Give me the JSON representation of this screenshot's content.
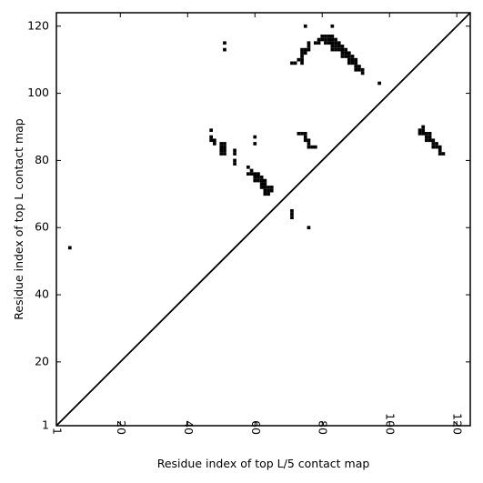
{
  "chart_data": {
    "type": "heatmap",
    "title": "",
    "xlabel": "Residue index of top L/5 contact map",
    "ylabel": "Residue index of top L contact map",
    "xlim": [
      1,
      124
    ],
    "ylim": [
      1,
      124
    ],
    "x_ticks": [
      1,
      20,
      40,
      60,
      80,
      100,
      120
    ],
    "y_ticks": [
      1,
      20,
      40,
      60,
      80,
      100,
      120
    ],
    "x_tick_rotation": -90,
    "diagonal_line": true,
    "cell_color": "#000000",
    "background_color": "#ffffff",
    "contacts": [
      [
        5,
        54
      ],
      [
        51,
        113
      ],
      [
        51,
        115
      ],
      [
        47,
        86
      ],
      [
        47,
        87
      ],
      [
        47,
        89
      ],
      [
        48,
        85
      ],
      [
        48,
        86
      ],
      [
        50,
        82
      ],
      [
        50,
        83
      ],
      [
        50,
        84
      ],
      [
        50,
        85
      ],
      [
        51,
        82
      ],
      [
        51,
        83
      ],
      [
        51,
        84
      ],
      [
        51,
        85
      ],
      [
        54,
        79
      ],
      [
        54,
        80
      ],
      [
        54,
        82
      ],
      [
        54,
        83
      ],
      [
        58,
        76
      ],
      [
        58,
        78
      ],
      [
        59,
        76
      ],
      [
        59,
        77
      ],
      [
        60,
        74
      ],
      [
        60,
        75
      ],
      [
        60,
        76
      ],
      [
        60,
        85
      ],
      [
        60,
        87
      ],
      [
        61,
        74
      ],
      [
        61,
        75
      ],
      [
        61,
        76
      ],
      [
        62,
        72
      ],
      [
        62,
        73
      ],
      [
        62,
        74
      ],
      [
        62,
        75
      ],
      [
        63,
        70
      ],
      [
        63,
        71
      ],
      [
        63,
        72
      ],
      [
        63,
        73
      ],
      [
        63,
        74
      ],
      [
        64,
        70
      ],
      [
        64,
        71
      ],
      [
        64,
        72
      ],
      [
        65,
        71
      ],
      [
        65,
        72
      ],
      [
        71,
        63
      ],
      [
        71,
        64
      ],
      [
        71,
        65
      ],
      [
        71,
        109
      ],
      [
        72,
        109
      ],
      [
        73,
        110
      ],
      [
        74,
        109
      ],
      [
        74,
        110
      ],
      [
        74,
        111
      ],
      [
        74,
        112
      ],
      [
        74,
        113
      ],
      [
        75,
        112
      ],
      [
        75,
        113
      ],
      [
        75,
        120
      ],
      [
        76,
        113
      ],
      [
        76,
        114
      ],
      [
        76,
        115
      ],
      [
        76,
        60
      ],
      [
        73,
        88
      ],
      [
        74,
        88
      ],
      [
        75,
        86
      ],
      [
        75,
        87
      ],
      [
        75,
        88
      ],
      [
        76,
        84
      ],
      [
        76,
        85
      ],
      [
        76,
        86
      ],
      [
        77,
        84
      ],
      [
        78,
        84
      ],
      [
        78,
        115
      ],
      [
        79,
        115
      ],
      [
        79,
        116
      ],
      [
        80,
        116
      ],
      [
        80,
        117
      ],
      [
        81,
        115
      ],
      [
        81,
        116
      ],
      [
        81,
        117
      ],
      [
        82,
        115
      ],
      [
        82,
        116
      ],
      [
        82,
        117
      ],
      [
        83,
        113
      ],
      [
        83,
        114
      ],
      [
        83,
        115
      ],
      [
        83,
        116
      ],
      [
        83,
        117
      ],
      [
        83,
        120
      ],
      [
        84,
        113
      ],
      [
        84,
        114
      ],
      [
        84,
        115
      ],
      [
        84,
        116
      ],
      [
        85,
        113
      ],
      [
        85,
        114
      ],
      [
        85,
        115
      ],
      [
        86,
        111
      ],
      [
        86,
        112
      ],
      [
        86,
        113
      ],
      [
        86,
        114
      ],
      [
        87,
        111
      ],
      [
        87,
        112
      ],
      [
        87,
        113
      ],
      [
        88,
        109
      ],
      [
        88,
        110
      ],
      [
        88,
        111
      ],
      [
        88,
        112
      ],
      [
        89,
        109
      ],
      [
        89,
        110
      ],
      [
        89,
        111
      ],
      [
        90,
        107
      ],
      [
        90,
        108
      ],
      [
        90,
        109
      ],
      [
        90,
        110
      ],
      [
        91,
        107
      ],
      [
        91,
        108
      ],
      [
        92,
        106
      ],
      [
        92,
        107
      ],
      [
        97,
        103
      ],
      [
        109,
        88
      ],
      [
        109,
        89
      ],
      [
        110,
        88
      ],
      [
        110,
        89
      ],
      [
        110,
        90
      ],
      [
        111,
        86
      ],
      [
        111,
        87
      ],
      [
        111,
        88
      ],
      [
        112,
        86
      ],
      [
        112,
        87
      ],
      [
        112,
        88
      ],
      [
        113,
        84
      ],
      [
        113,
        85
      ],
      [
        113,
        86
      ],
      [
        114,
        84
      ],
      [
        114,
        85
      ],
      [
        115,
        82
      ],
      [
        115,
        83
      ],
      [
        115,
        84
      ],
      [
        116,
        82
      ]
    ]
  }
}
